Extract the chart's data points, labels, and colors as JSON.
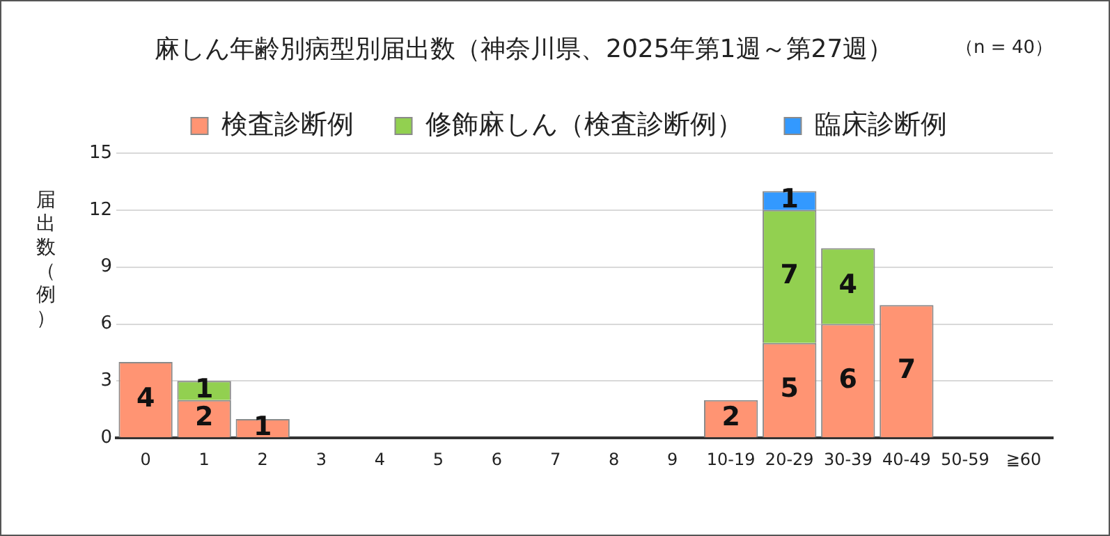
{
  "chart_data": {
    "type": "bar",
    "title": "麻しん年齢別病型別届出数（神奈川県、2025年第1週～第27週）",
    "ylabel": "届出数（例）",
    "annotations": [
      "（n = 40）"
    ],
    "categories": [
      "0",
      "1",
      "2",
      "3",
      "4",
      "5",
      "6",
      "7",
      "8",
      "9",
      "10-19",
      "20-29",
      "30-39",
      "40-49",
      "50-59",
      "≧60"
    ],
    "stacked": true,
    "series": [
      {
        "name": "検査診断例",
        "color": "#ff9473",
        "values": [
          4,
          2,
          1,
          0,
          0,
          0,
          0,
          0,
          0,
          0,
          2,
          5,
          6,
          7,
          0,
          0
        ],
        "value_labels": [
          "4",
          "2",
          "1",
          null,
          null,
          null,
          null,
          null,
          null,
          null,
          "2",
          "5",
          "6",
          "7",
          null,
          null
        ]
      },
      {
        "name": "修飾麻しん（検査診断例）",
        "color": "#92d050",
        "values": [
          0,
          1,
          0,
          0,
          0,
          0,
          0,
          0,
          0,
          0,
          0,
          7,
          4,
          0,
          0,
          0
        ],
        "value_labels": [
          null,
          "1",
          null,
          null,
          null,
          null,
          null,
          null,
          null,
          null,
          null,
          "7",
          "4",
          null,
          null,
          null
        ]
      },
      {
        "name": "臨床診断例",
        "color": "#3399ff",
        "values": [
          0,
          0,
          0,
          0,
          0,
          0,
          0,
          0,
          0,
          0,
          0,
          1,
          0,
          0,
          0,
          0
        ],
        "value_labels": [
          null,
          null,
          null,
          null,
          null,
          null,
          null,
          null,
          null,
          null,
          null,
          "1",
          null,
          null,
          null,
          null
        ]
      }
    ],
    "ylim": [
      0,
      15
    ],
    "yticks": [
      0,
      3,
      6,
      9,
      12,
      15
    ],
    "grid": "y",
    "legend": "top"
  }
}
